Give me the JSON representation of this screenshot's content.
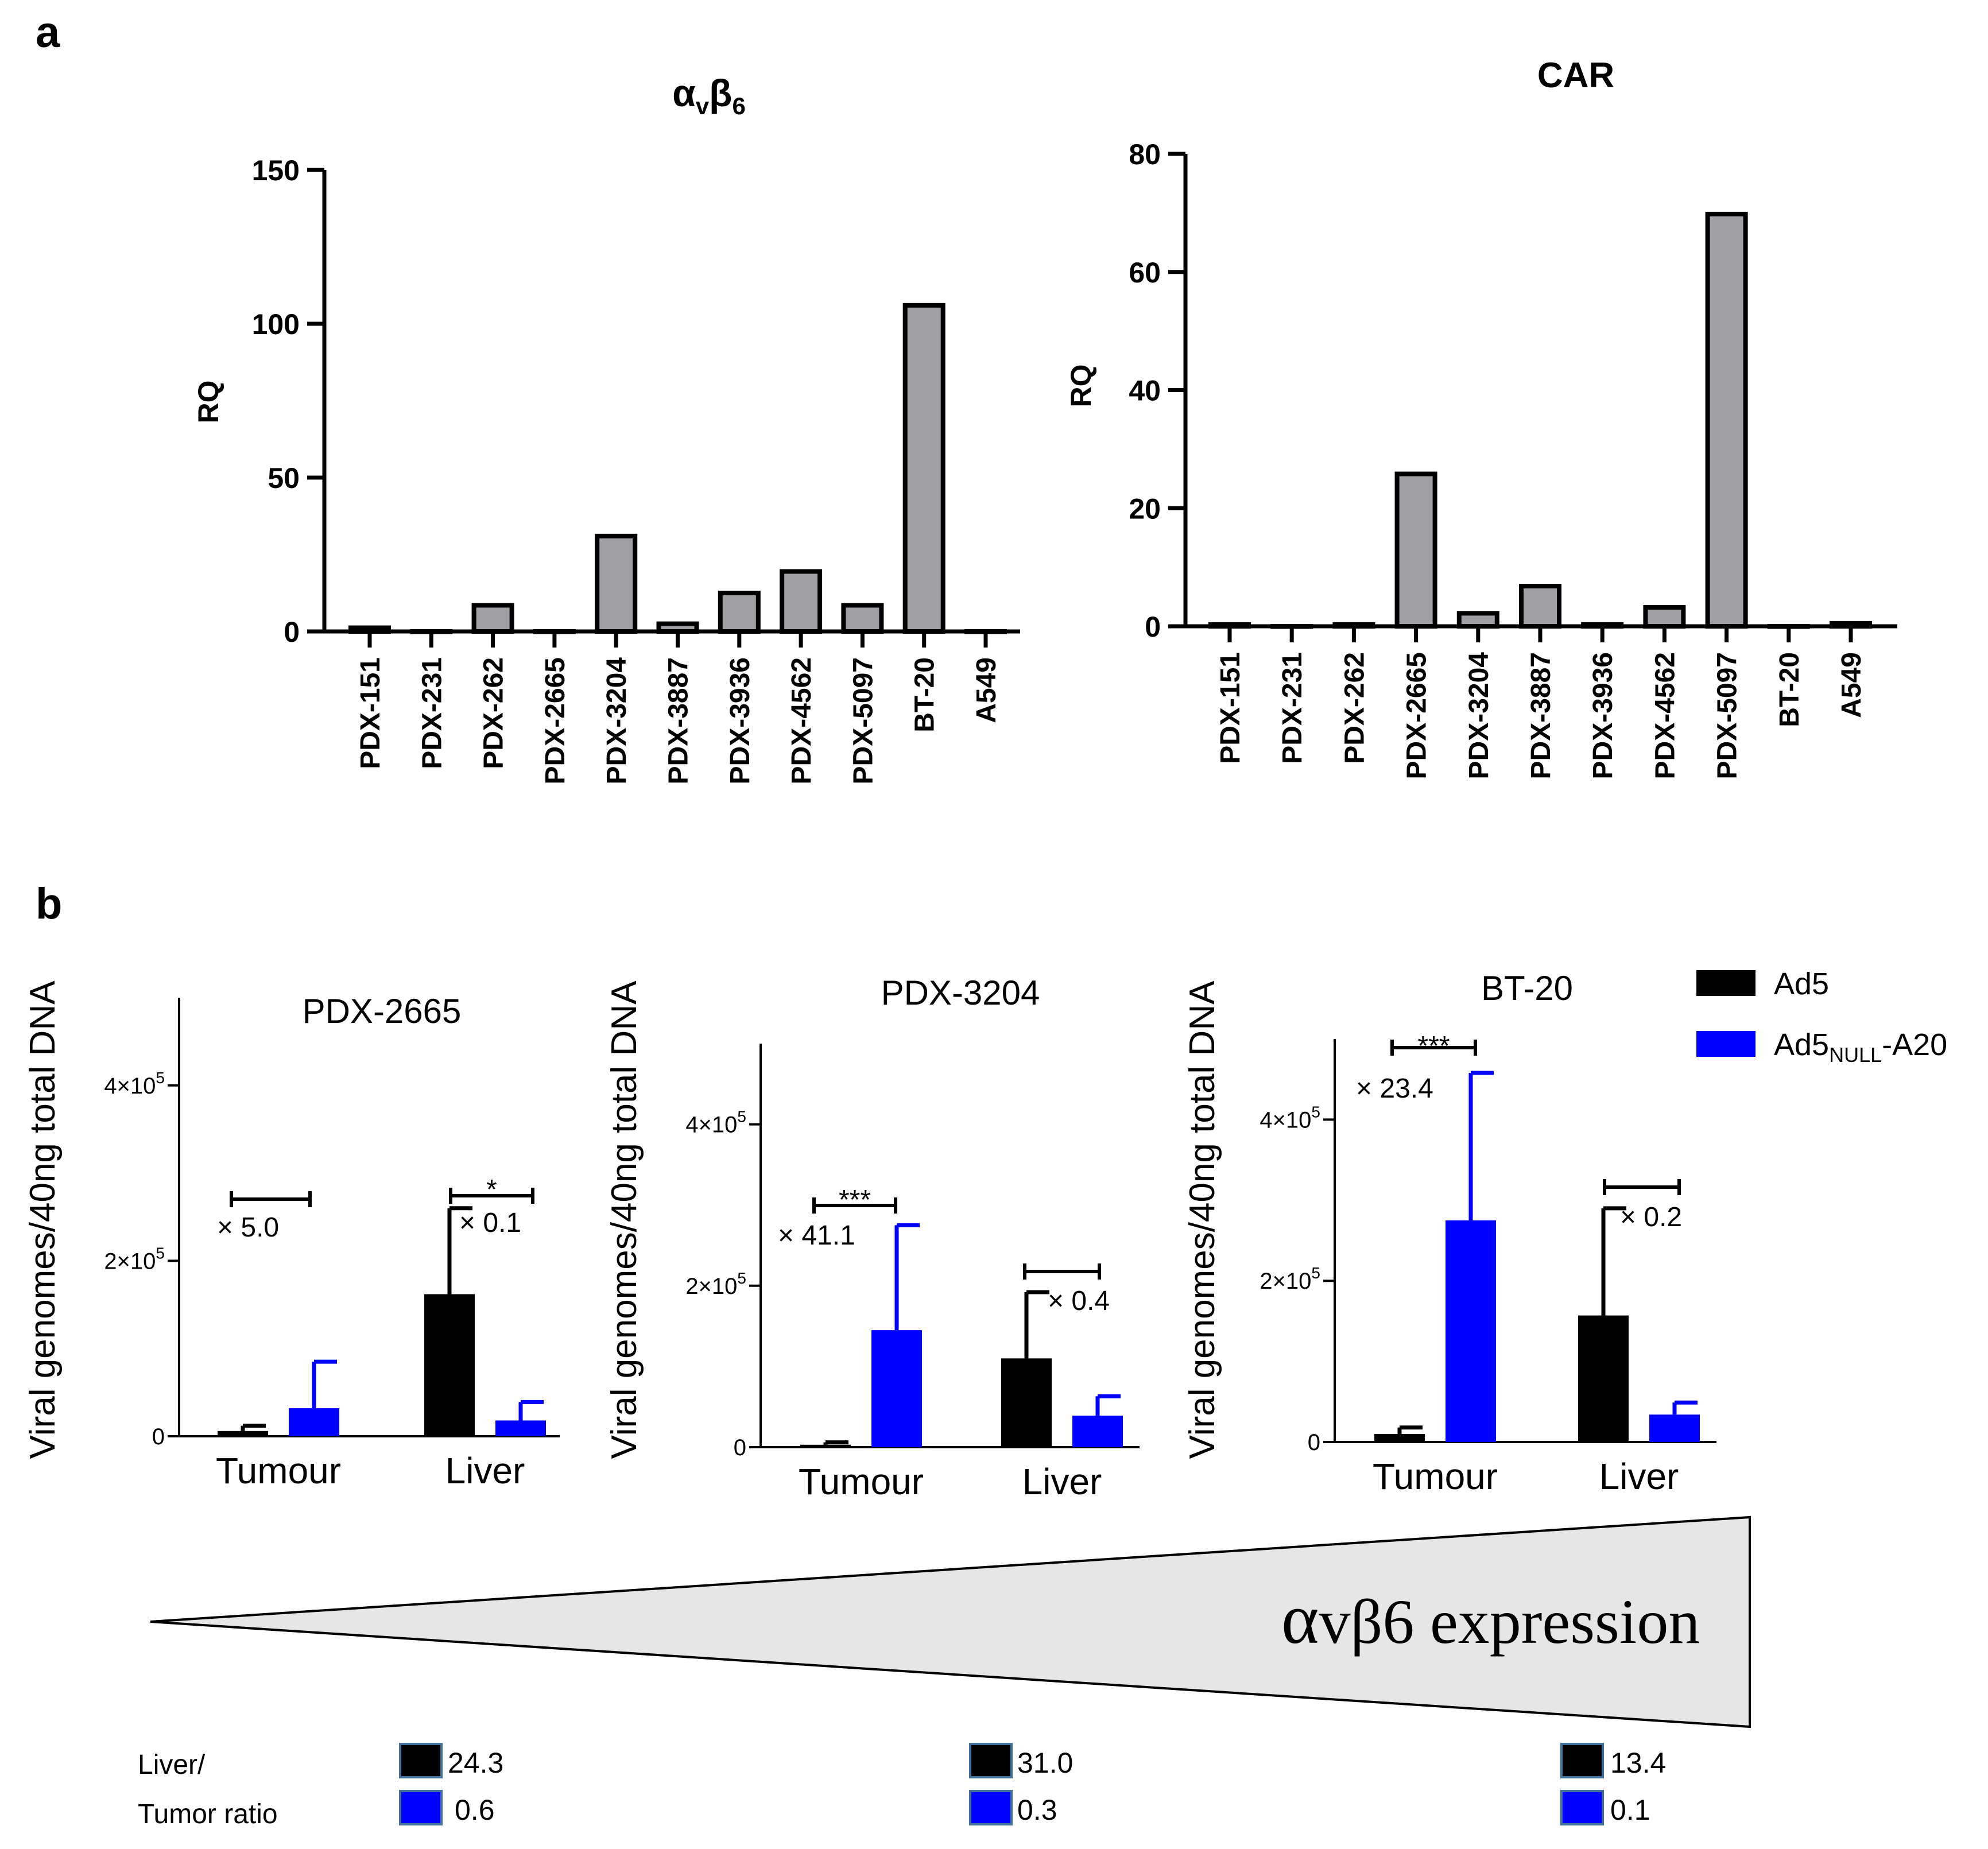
{
  "panel_labels": [
    "a",
    "b"
  ],
  "chart_data": [
    {
      "id": "avb6",
      "type": "bar",
      "title": "αvβ6",
      "title_main": "α",
      "title_sub1": "v",
      "title_mid": "β",
      "title_sub2": "6",
      "xlabel": "",
      "ylabel": "RQ",
      "ylim": [
        0,
        150
      ],
      "yticks": [
        0,
        50,
        100,
        150
      ],
      "categories": [
        "PDX-151",
        "PDX-231",
        "PDX-262",
        "PDX-2665",
        "PDX-3204",
        "PDX-3887",
        "PDX-3936",
        "PDX-4562",
        "PDX-5097",
        "BT-20",
        "A549"
      ],
      "values": [
        1.2,
        0,
        8.5,
        0,
        31,
        2.5,
        12.5,
        19.5,
        8.5,
        106,
        0
      ],
      "bar_color": "#a0a0a4"
    },
    {
      "id": "car",
      "type": "bar",
      "title": "CAR",
      "xlabel": "",
      "ylabel": "RQ",
      "ylim": [
        0,
        80
      ],
      "yticks": [
        0,
        20,
        40,
        60,
        80
      ],
      "categories": [
        "PDX-151",
        "PDX-231",
        "PDX-262",
        "PDX-2665",
        "PDX-3204",
        "PDX-3887",
        "PDX-3936",
        "PDX-4562",
        "PDX-5097",
        "BT-20",
        "A549"
      ],
      "values": [
        0.3,
        0,
        0.3,
        25.8,
        2.2,
        6.8,
        0.3,
        3.2,
        69.8,
        0,
        0.5
      ],
      "bar_color": "#a0a0a4"
    },
    {
      "id": "pdx2665",
      "type": "bar",
      "title": "PDX-2665",
      "ylabel": "Viral genomes/40ng total DNA",
      "ylim": [
        0,
        500000
      ],
      "yticks": [
        {
          "value": 0,
          "base": "0",
          "exp": ""
        },
        {
          "value": 200000,
          "base": "2×10",
          "exp": "5"
        },
        {
          "value": 400000,
          "base": "4×10",
          "exp": "5"
        }
      ],
      "categories": [
        "Tumour",
        "Liver"
      ],
      "series": [
        {
          "name": "Ad5",
          "color": "#000000",
          "values": [
            6000,
            162000
          ],
          "errors": [
            6000,
            98000
          ]
        },
        {
          "name": "Ad5NULL-A20",
          "color": "#0000ff",
          "values": [
            32000,
            18000
          ],
          "errors": [
            53000,
            21000
          ]
        }
      ],
      "annotations": [
        {
          "category": "Tumour",
          "stars": "",
          "fold": "× 5.0"
        },
        {
          "category": "Liver",
          "stars": "*",
          "fold": "× 0.1"
        }
      ]
    },
    {
      "id": "pdx3204",
      "type": "bar",
      "title": "PDX-3204",
      "ylabel": "Viral genomes/40ng total DNA",
      "ylim": [
        0,
        500000
      ],
      "yticks": [
        {
          "value": 0,
          "base": "0",
          "exp": ""
        },
        {
          "value": 200000,
          "base": "2×10",
          "exp": "5"
        },
        {
          "value": 400000,
          "base": "4×10",
          "exp": "5"
        }
      ],
      "categories": [
        "Tumour",
        "Liver"
      ],
      "series": [
        {
          "name": "Ad5",
          "color": "#000000",
          "values": [
            3000,
            110000
          ],
          "errors": [
            3000,
            82000
          ]
        },
        {
          "name": "Ad5NULL-A20",
          "color": "#0000ff",
          "values": [
            145000,
            39000
          ],
          "errors": [
            130000,
            24000
          ]
        }
      ],
      "annotations": [
        {
          "category": "Tumour",
          "stars": "***",
          "fold": "× 41.1"
        },
        {
          "category": "Liver",
          "stars": "",
          "fold": "× 0.4"
        }
      ]
    },
    {
      "id": "bt20",
      "type": "bar",
      "title": "BT-20",
      "ylabel": "Viral genomes/40ng total DNA",
      "ylim": [
        0,
        500000
      ],
      "yticks": [
        {
          "value": 0,
          "base": "0",
          "exp": ""
        },
        {
          "value": 200000,
          "base": "2×10",
          "exp": "5"
        },
        {
          "value": 400000,
          "base": "4×10",
          "exp": "5"
        }
      ],
      "categories": [
        "Tumour",
        "Liver"
      ],
      "series": [
        {
          "name": "Ad5",
          "color": "#000000",
          "values": [
            10000,
            157000
          ],
          "errors": [
            8000,
            133000
          ]
        },
        {
          "name": "Ad5NULL-A20",
          "color": "#0000ff",
          "values": [
            275000,
            34000
          ],
          "errors": [
            183000,
            15000
          ]
        }
      ],
      "annotations": [
        {
          "category": "Tumour",
          "stars": "***",
          "fold": "× 23.4"
        },
        {
          "category": "Liver",
          "stars": "",
          "fold": "× 0.2"
        }
      ]
    }
  ],
  "legend": {
    "items": [
      {
        "label": "Ad5",
        "color": "#000000"
      },
      {
        "label_main": "Ad5",
        "label_sub": "NULL",
        "label_tail": "-A20",
        "color": "#0000ff"
      }
    ]
  },
  "wedge": {
    "label": "αvβ6 expression",
    "label_alpha": "α",
    "label_rest": "vβ6 expression",
    "fill": "#e6e6e6"
  },
  "ratio_table": {
    "label_line1": "Liver/",
    "label_line2": "Tumor ratio",
    "groups": [
      {
        "ad5": "24.3",
        "a20": "0.6"
      },
      {
        "ad5": "31.0",
        "a20": "0.3"
      },
      {
        "ad5": "13.4",
        "a20": "0.1"
      }
    ]
  }
}
